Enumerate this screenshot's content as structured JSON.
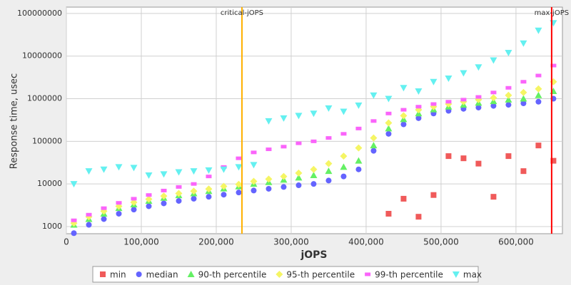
{
  "chart_data": {
    "type": "scatter",
    "x_label": "jOPS",
    "y_label": "Response time, usec",
    "xlim": [
      0,
      662000
    ],
    "ylim": [
      680,
      141000000
    ],
    "log_y": true,
    "grid": true,
    "xticks": [
      {
        "value": 0,
        "label": "0"
      },
      {
        "value": 100000,
        "label": "100,000"
      },
      {
        "value": 200000,
        "label": "200,000"
      },
      {
        "value": 300000,
        "label": "300,000"
      },
      {
        "value": 400000,
        "label": "400,000"
      },
      {
        "value": 500000,
        "label": "500,000"
      },
      {
        "value": 600000,
        "label": "600,000"
      }
    ],
    "yticks": [
      1000,
      10000,
      100000,
      1000000,
      10000000,
      100000000
    ],
    "annotations": [
      {
        "label": "critical-jOPS",
        "x": 234300,
        "color": "#ffb000"
      },
      {
        "label": "max-jOPS",
        "x": 647600,
        "color": "#ff0000"
      }
    ],
    "legend": "bottom",
    "x": [
      10000,
      30000,
      50000,
      70000,
      90000,
      110000,
      130000,
      150000,
      170000,
      190000,
      210000,
      230000,
      250000,
      270000,
      290000,
      310000,
      330000,
      350000,
      370000,
      390000,
      410000,
      430000,
      450000,
      470000,
      490000,
      510000,
      530000,
      550000,
      570000,
      590000,
      610000,
      630000,
      650000
    ],
    "series": [
      {
        "name": "min",
        "color": "#f05a5a",
        "marker": "square",
        "values": [
          null,
          null,
          null,
          null,
          null,
          null,
          null,
          null,
          null,
          null,
          null,
          null,
          null,
          null,
          null,
          null,
          null,
          null,
          null,
          null,
          null,
          2000,
          4500,
          1700,
          5500,
          45000,
          40000,
          30000,
          5000,
          45000,
          20000,
          80000,
          35000
        ]
      },
      {
        "name": "median",
        "color": "#6464ff",
        "marker": "circle",
        "values": [
          700,
          1100,
          1500,
          2000,
          2500,
          3000,
          3500,
          4000,
          4500,
          5000,
          5600,
          6300,
          7000,
          7700,
          8500,
          9300,
          10000,
          12000,
          15000,
          22000,
          60000,
          150000,
          250000,
          350000,
          450000,
          520000,
          580000,
          620000,
          680000,
          720000,
          780000,
          850000,
          1000000
        ]
      },
      {
        "name": "90-th percentile",
        "color": "#64f064",
        "marker": "triangle",
        "values": [
          1100,
          1500,
          2000,
          2700,
          3300,
          4000,
          4700,
          5400,
          6000,
          6800,
          7800,
          8700,
          10000,
          11000,
          12500,
          14000,
          16000,
          20000,
          25000,
          35000,
          80000,
          200000,
          330000,
          450000,
          560000,
          650000,
          720000,
          800000,
          870000,
          950000,
          1000000,
          1200000,
          1500000
        ]
      },
      {
        "name": "95-th percentile",
        "color": "#f5f564",
        "marker": "diamond",
        "values": [
          1200,
          1700,
          2300,
          3000,
          3700,
          4400,
          5200,
          6000,
          6800,
          7600,
          8800,
          9800,
          11500,
          13000,
          15000,
          18000,
          22000,
          30000,
          45000,
          70000,
          120000,
          270000,
          400000,
          550000,
          650000,
          750000,
          850000,
          950000,
          1050000,
          1200000,
          1400000,
          1700000,
          2500000
        ]
      },
      {
        "name": "99-th percentile",
        "color": "#fa64fa",
        "marker": "rect",
        "values": [
          1400,
          1900,
          2700,
          3600,
          4500,
          5500,
          7000,
          8500,
          10000,
          15000,
          25000,
          40000,
          55000,
          65000,
          75000,
          90000,
          100000,
          120000,
          150000,
          200000,
          300000,
          450000,
          550000,
          650000,
          750000,
          850000,
          950000,
          1100000,
          1400000,
          1800000,
          2500000,
          3500000,
          6000000
        ]
      },
      {
        "name": "max",
        "color": "#64f0f0",
        "marker": "triangle-down",
        "values": [
          10000,
          20000,
          22000,
          25000,
          24000,
          16000,
          17000,
          19000,
          20000,
          21000,
          22000,
          25000,
          28000,
          300000,
          350000,
          400000,
          450000,
          600000,
          500000,
          700000,
          1200000,
          1000000,
          1800000,
          1500000,
          2500000,
          3000000,
          4000000,
          5500000,
          8000000,
          12000000,
          20000000,
          40000000,
          60000000
        ]
      }
    ]
  }
}
